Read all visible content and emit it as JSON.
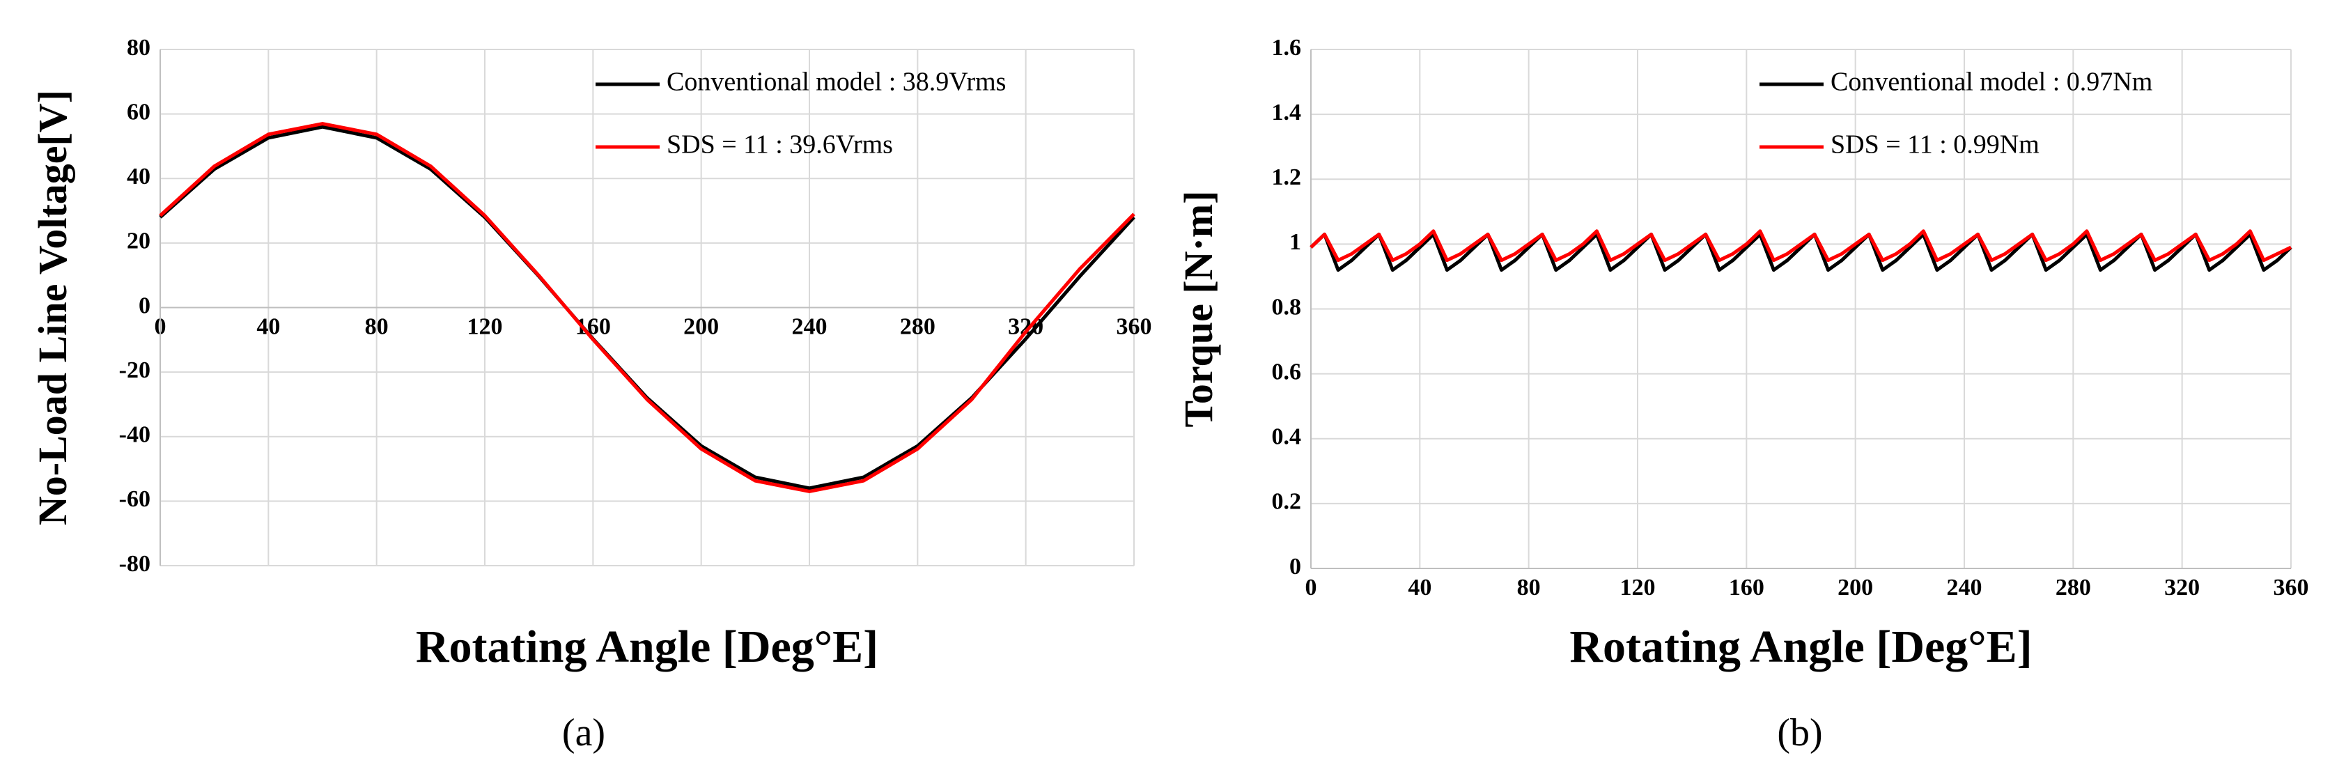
{
  "chart_data": [
    {
      "type": "line",
      "ylabel": "No-Load Line Voltage[V]",
      "xlabel": "Rotating Angle [Deg°E]",
      "caption": "(a)",
      "x": [
        0,
        20,
        40,
        60,
        80,
        100,
        120,
        140,
        160,
        180,
        200,
        220,
        240,
        260,
        280,
        300,
        320,
        340,
        360
      ],
      "series": [
        {
          "name": "Conventional model : 38.9Vrms",
          "color": "#000000",
          "values": [
            28,
            42.9,
            52.6,
            56,
            52.6,
            42.9,
            28,
            9.7,
            -9.7,
            -28,
            -42.9,
            -52.6,
            -56,
            -52.6,
            -42.9,
            -28,
            -9.7,
            9.7,
            28
          ]
        },
        {
          "name": "SDS = 11 : 39.6Vrms",
          "color": "#ff0000",
          "values": [
            28.5,
            43.8,
            53.7,
            57,
            53.7,
            43.8,
            28.5,
            9.9,
            -9.9,
            -28.5,
            -43.8,
            -53.7,
            -57,
            -53.7,
            -43.8,
            -28.5,
            -7.5,
            12,
            29
          ]
        }
      ],
      "xlim": [
        0,
        360
      ],
      "xticks": [
        0,
        40,
        80,
        120,
        160,
        200,
        240,
        280,
        320,
        360
      ],
      "ylim": [
        -80,
        80
      ],
      "yticks": [
        -80,
        -60,
        -40,
        -20,
        0,
        20,
        40,
        60,
        80
      ],
      "grid": true,
      "legend": "upper right"
    },
    {
      "type": "line",
      "ylabel": "Torque [N·m]",
      "xlabel": "Rotating Angle [Deg°E]",
      "caption": "(b)",
      "x": [
        0,
        5,
        10,
        15,
        20,
        25,
        30,
        35,
        40,
        45,
        50,
        55,
        60,
        65,
        70,
        75,
        80,
        85,
        90,
        95,
        100,
        105,
        110,
        115,
        120,
        125,
        130,
        135,
        140,
        145,
        150,
        155,
        160,
        165,
        170,
        175,
        180,
        185,
        190,
        195,
        200,
        205,
        210,
        215,
        220,
        225,
        230,
        235,
        240,
        245,
        250,
        255,
        260,
        265,
        270,
        275,
        280,
        285,
        290,
        295,
        300,
        305,
        310,
        315,
        320,
        325,
        330,
        335,
        340,
        345,
        350,
        355,
        360
      ],
      "series": [
        {
          "name": "Conventional model : 0.97Nm",
          "color": "#000000",
          "values": [
            0.99,
            1.03,
            0.92,
            0.95,
            0.99,
            1.03,
            0.92,
            0.95,
            0.99,
            1.03,
            0.92,
            0.95,
            0.99,
            1.03,
            0.92,
            0.95,
            0.99,
            1.03,
            0.92,
            0.95,
            0.99,
            1.03,
            0.92,
            0.95,
            0.99,
            1.03,
            0.92,
            0.95,
            0.99,
            1.03,
            0.92,
            0.95,
            0.99,
            1.03,
            0.92,
            0.95,
            0.99,
            1.03,
            0.92,
            0.95,
            0.99,
            1.03,
            0.92,
            0.95,
            0.99,
            1.03,
            0.92,
            0.95,
            0.99,
            1.03,
            0.92,
            0.95,
            0.99,
            1.03,
            0.92,
            0.95,
            0.99,
            1.03,
            0.92,
            0.95,
            0.99,
            1.03,
            0.92,
            0.95,
            0.99,
            1.03,
            0.92,
            0.95,
            0.99,
            1.03,
            0.92,
            0.95,
            0.99
          ]
        },
        {
          "name": "SDS = 11 : 0.99Nm",
          "color": "#ff0000",
          "values": [
            0.99,
            1.03,
            0.95,
            0.97,
            1.0,
            1.03,
            0.95,
            0.97,
            1.0,
            1.04,
            0.95,
            0.97,
            1.0,
            1.03,
            0.95,
            0.97,
            1.0,
            1.03,
            0.95,
            0.97,
            1.0,
            1.04,
            0.95,
            0.97,
            1.0,
            1.03,
            0.95,
            0.97,
            1.0,
            1.03,
            0.95,
            0.97,
            1.0,
            1.04,
            0.95,
            0.97,
            1.0,
            1.03,
            0.95,
            0.97,
            1.0,
            1.03,
            0.95,
            0.97,
            1.0,
            1.04,
            0.95,
            0.97,
            1.0,
            1.03,
            0.95,
            0.97,
            1.0,
            1.03,
            0.95,
            0.97,
            1.0,
            1.04,
            0.95,
            0.97,
            1.0,
            1.03,
            0.95,
            0.97,
            1.0,
            1.03,
            0.95,
            0.97,
            1.0,
            1.04,
            0.95,
            0.97,
            0.99
          ]
        }
      ],
      "xlim": [
        0,
        360
      ],
      "xticks": [
        0,
        40,
        80,
        120,
        160,
        200,
        240,
        280,
        320,
        360
      ],
      "ylim": [
        0,
        1.6
      ],
      "yticks": [
        0,
        0.2,
        0.4,
        0.6,
        0.8,
        1,
        1.2,
        1.4,
        1.6
      ],
      "grid": true,
      "legend": "upper right"
    }
  ]
}
